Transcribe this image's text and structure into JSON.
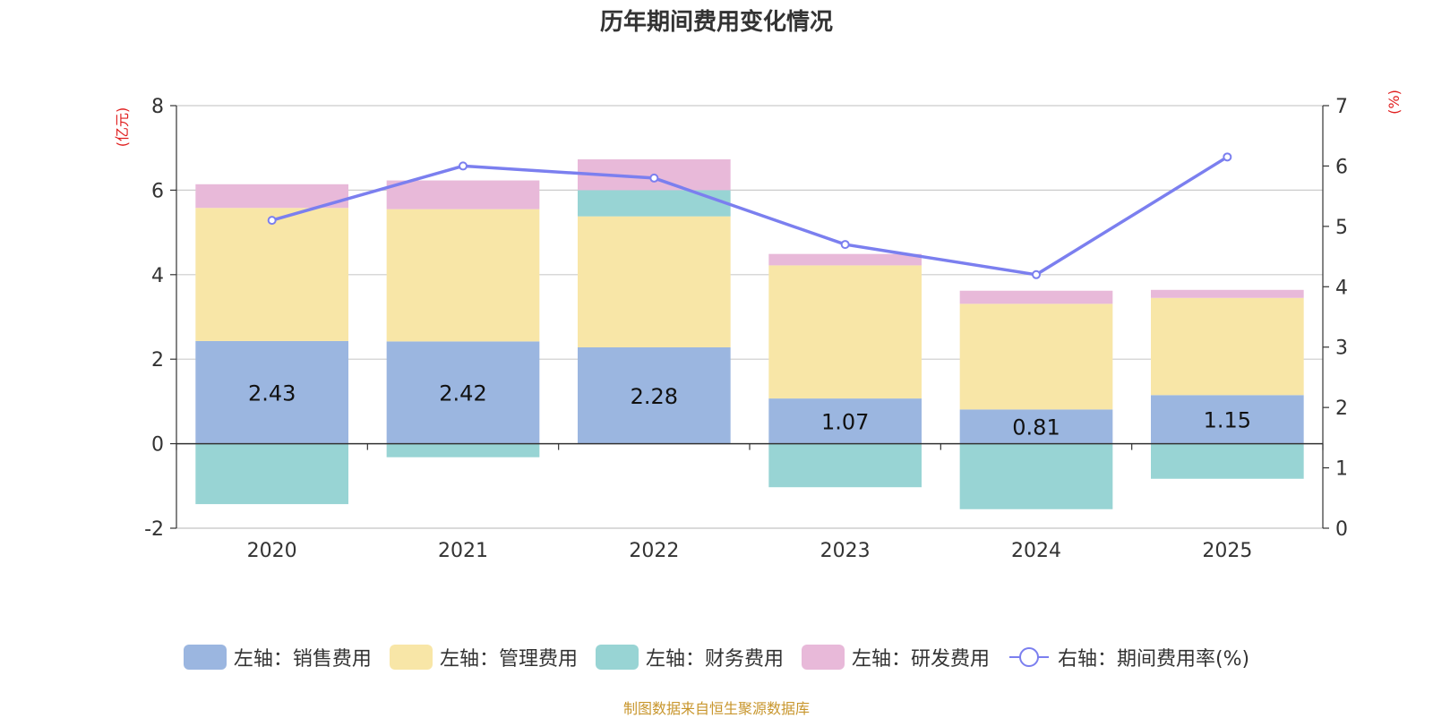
{
  "chart_data": {
    "type": "bar",
    "title": "历年期间费用变化情况",
    "categories": [
      "2020",
      "2021",
      "2022",
      "2023",
      "2024",
      "2025"
    ],
    "left_axis": {
      "unit_label": "(亿元)",
      "ylim": [
        -2,
        8
      ],
      "ticks": [
        "-2",
        "0",
        "2",
        "4",
        "6",
        "8"
      ]
    },
    "right_axis": {
      "unit_label": "(%)",
      "ylim": [
        0,
        7
      ],
      "ticks": [
        "0",
        "1",
        "2",
        "3",
        "4",
        "5",
        "6",
        "7"
      ]
    },
    "series": [
      {
        "name": "左轴：销售费用",
        "axis": "left",
        "color": "#9bb6e0",
        "values": [
          2.43,
          2.42,
          2.28,
          1.07,
          0.81,
          1.15
        ],
        "labels": [
          "2.43",
          "2.42",
          "2.28",
          "1.07",
          "0.81",
          "1.15"
        ]
      },
      {
        "name": "左轴：管理费用",
        "axis": "left",
        "color": "#f8e6a7",
        "values": [
          3.15,
          3.13,
          3.1,
          3.15,
          2.5,
          2.3
        ]
      },
      {
        "name": "左轴：财务费用",
        "axis": "left",
        "color": "#98d4d4",
        "values": [
          -1.43,
          -0.32,
          0.62,
          -1.03,
          -1.55,
          -0.83
        ]
      },
      {
        "name": "左轴：研发费用",
        "axis": "left",
        "color": "#e8b9d9",
        "values": [
          0.56,
          0.68,
          0.73,
          0.27,
          0.31,
          0.19
        ]
      },
      {
        "name": "右轴：期间费用率(%)",
        "axis": "right",
        "type": "line",
        "color": "#7b7fef",
        "values": [
          5.1,
          6.0,
          5.8,
          4.7,
          4.2,
          6.15
        ]
      }
    ],
    "grid": true,
    "legend_position": "bottom"
  },
  "source_note": "制图数据来自恒生聚源数据库"
}
